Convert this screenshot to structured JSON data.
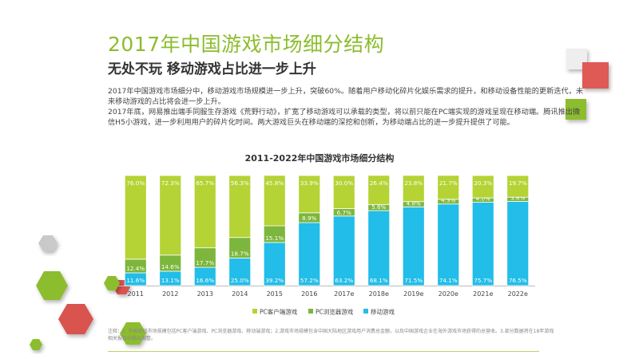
{
  "header": {
    "title": "2017年中国游戏市场细分结构",
    "subtitle": "无处不玩 移动游戏占比进一步上升"
  },
  "body": {
    "p1": "2017年中国游戏市场细分中，移动游戏市场规模进一步上升，突破60%。随着用户移动化碎片化娱乐需求的提升，和移动设备性能的更新迭代，未来移动游戏的占比将会进一步上升。",
    "p2": "2017年底，网易推出端手同服生存游戏《荒野行动》，扩宽了移动游戏可以承载的类型，将以前只能在PC端实现的游戏呈现在移动端。腾讯推出微信H5小游戏，进一步利用用户的碎片化时间。两大游戏巨头在移动端的深挖和创新，为移动端占比的进一步提升提供了可能。"
  },
  "footnote": "注释：1. 中国游戏市场规模包括PC客户端游戏、PC浏览器游戏、移动端游戏；2.游戏市场规模包含中国大陆地区游戏用户消费总金额，以及中国游戏企业在海外游戏市场获得的总营收。3.部分数据将在18年游戏相关报告中做出调整。",
  "colors": {
    "pc_client": "#b5d335",
    "pc_browser": "#7db63c",
    "mobile": "#22bde8",
    "title": "#8cbd2f"
  },
  "chart_data": {
    "type": "bar",
    "stacked": true,
    "percent": true,
    "title": "2011-2022年中国游戏市场细分结构",
    "categories": [
      "2011",
      "2012",
      "2013",
      "2014",
      "2015",
      "2016",
      "2017e",
      "2018e",
      "2019e",
      "2020e",
      "2021e",
      "2022e"
    ],
    "series": [
      {
        "name": "移动游戏",
        "values": [
          11.6,
          13.1,
          16.6,
          25.0,
          39.2,
          57.2,
          63.2,
          68.1,
          71.5,
          74.1,
          75.7,
          76.5
        ]
      },
      {
        "name": "PC浏览器游戏",
        "values": [
          12.4,
          14.6,
          17.7,
          18.7,
          15.1,
          8.9,
          6.7,
          5.6,
          4.8,
          4.3,
          4.0,
          3.8
        ]
      },
      {
        "name": "PC客户端游戏",
        "values": [
          76.0,
          72.3,
          65.7,
          56.3,
          45.8,
          33.9,
          30.0,
          26.4,
          23.8,
          21.7,
          20.3,
          19.7
        ]
      }
    ],
    "legend": [
      "PC客户端游戏",
      "PC浏览器游戏",
      "移动游戏"
    ],
    "ylim": [
      0,
      100
    ]
  }
}
